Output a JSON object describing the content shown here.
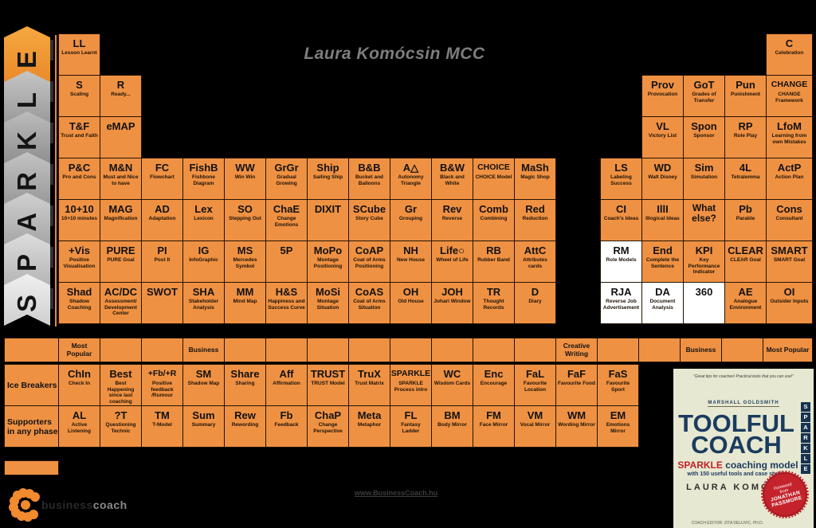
{
  "title": "Laura Komócsin MCC",
  "colors": {
    "cell_orange": "#EF9143",
    "white_cell": "#FFFFFF",
    "navy": "#1B3B5F",
    "red": "#C32026",
    "chevron_orange": "#F6A83F"
  },
  "sparkle_column": {
    "letters_top_to_bottom": [
      "E",
      "L",
      "K",
      "R",
      "A",
      "P",
      "S"
    ]
  },
  "main_table": {
    "rows": [
      {
        "row": 1,
        "cells": [
          {
            "col": 1,
            "sym": "LL",
            "cap": "Lesson Learnt"
          }
        ]
      },
      {
        "row": 2,
        "cells": [
          {
            "col": 1,
            "sym": "S",
            "cap": "Scaling"
          },
          {
            "col": 2,
            "sym": "R",
            "cap": "Ready..."
          }
        ]
      },
      {
        "row": 3,
        "cells": [
          {
            "col": 1,
            "sym": "T&F",
            "cap": "Trust and Faith"
          },
          {
            "col": 2,
            "sym": "eMAP",
            "cap": ""
          }
        ]
      },
      {
        "row": 4,
        "cells": [
          {
            "col": 1,
            "sym": "P&C",
            "cap": "Pro and Cons"
          },
          {
            "col": 2,
            "sym": "M&N",
            "cap": "Must and Nice to have"
          },
          {
            "col": 3,
            "sym": "FC",
            "cap": "Flowchart"
          },
          {
            "col": 4,
            "sym": "FishB",
            "cap": "Fishbone Diagram"
          },
          {
            "col": 5,
            "sym": "WW",
            "cap": "Win Win"
          },
          {
            "col": 6,
            "sym": "GrGr",
            "cap": "Gradual Growing"
          },
          {
            "col": 7,
            "sym": "Ship",
            "cap": "Sailing Ship"
          },
          {
            "col": 8,
            "sym": "B&B",
            "cap": "Bucket and Balloons"
          },
          {
            "col": 9,
            "sym": "A△",
            "cap": "Autonomy Triangle"
          },
          {
            "col": 10,
            "sym": "B&W",
            "cap": "Black and White"
          },
          {
            "col": 11,
            "sym": "CHOICE",
            "cap": "CHOICE Model"
          },
          {
            "col": 12,
            "sym": "MaSh",
            "cap": "Magic Shop"
          }
        ]
      },
      {
        "row": 5,
        "cells": [
          {
            "col": 1,
            "sym": "10+10",
            "cap": "10+10 minutes"
          },
          {
            "col": 2,
            "sym": "MAG",
            "cap": "Magnification"
          },
          {
            "col": 3,
            "sym": "AD",
            "cap": "Adaptation"
          },
          {
            "col": 4,
            "sym": "Lex",
            "cap": "Lexicon"
          },
          {
            "col": 5,
            "sym": "SO",
            "cap": "Stepping Out"
          },
          {
            "col": 6,
            "sym": "ChaE",
            "cap": "Change Emotions"
          },
          {
            "col": 7,
            "sym": "DIXIT",
            "cap": ""
          },
          {
            "col": 8,
            "sym": "SCube",
            "cap": "Story Cube"
          },
          {
            "col": 9,
            "sym": "Gr",
            "cap": "Grouping"
          },
          {
            "col": 10,
            "sym": "Rev",
            "cap": "Reverse"
          },
          {
            "col": 11,
            "sym": "Comb",
            "cap": "Combining"
          },
          {
            "col": 12,
            "sym": "Red",
            "cap": "Reduction"
          }
        ]
      },
      {
        "row": 6,
        "cells": [
          {
            "col": 1,
            "sym": "+Vis",
            "cap": "Positive Visualisation"
          },
          {
            "col": 2,
            "sym": "PURE",
            "cap": "PURE Goal"
          },
          {
            "col": 3,
            "sym": "PI",
            "cap": "Post It"
          },
          {
            "col": 4,
            "sym": "IG",
            "cap": "InfoGraphic"
          },
          {
            "col": 5,
            "sym": "MS",
            "cap": "Mercedes Symbol"
          },
          {
            "col": 6,
            "sym": "5P",
            "cap": ""
          },
          {
            "col": 7,
            "sym": "MoPo",
            "cap": "Montage Positioning"
          },
          {
            "col": 8,
            "sym": "CoAP",
            "cap": "Coat of Arms Positioning"
          },
          {
            "col": 9,
            "sym": "NH",
            "cap": "New House"
          },
          {
            "col": 10,
            "sym": "Life○",
            "cap": "Wheel of Life"
          },
          {
            "col": 11,
            "sym": "RB",
            "cap": "Rubber Band"
          },
          {
            "col": 12,
            "sym": "AttC",
            "cap": "Attributes cards"
          }
        ]
      },
      {
        "row": 7,
        "cells": [
          {
            "col": 1,
            "sym": "Shad",
            "cap": "Shadow Coaching"
          },
          {
            "col": 2,
            "sym": "AC/DC",
            "cap": "Assessment/ Development Center"
          },
          {
            "col": 3,
            "sym": "SWOT",
            "cap": ""
          },
          {
            "col": 4,
            "sym": "SHA",
            "cap": "Stakeholder Analysis"
          },
          {
            "col": 5,
            "sym": "MM",
            "cap": "Mind Map"
          },
          {
            "col": 6,
            "sym": "H&S",
            "cap": "Happiness and Success Curve"
          },
          {
            "col": 7,
            "sym": "MoSi",
            "cap": "Montage Situation"
          },
          {
            "col": 8,
            "sym": "CoAS",
            "cap": "Coat of Arms Situation"
          },
          {
            "col": 9,
            "sym": "OH",
            "cap": "Old House"
          },
          {
            "col": 10,
            "sym": "JOH",
            "cap": "Johari Window"
          },
          {
            "col": 11,
            "sym": "TR",
            "cap": "Thought Records"
          },
          {
            "col": 12,
            "sym": "D",
            "cap": "Diary"
          }
        ]
      }
    ]
  },
  "right_table": {
    "rows": [
      {
        "row": 1,
        "cells": [
          {
            "col": 5,
            "sym": "C",
            "cap": "Celebration"
          }
        ]
      },
      {
        "row": 2,
        "cells": [
          {
            "col": 2,
            "sym": "Prov",
            "cap": "Provocation"
          },
          {
            "col": 3,
            "sym": "GoT",
            "cap": "Grades of Transfer"
          },
          {
            "col": 4,
            "sym": "Pun",
            "cap": "Punishment"
          },
          {
            "col": 5,
            "sym": "CHANGE",
            "cap": "CHANGE Framework"
          }
        ]
      },
      {
        "row": 3,
        "cells": [
          {
            "col": 2,
            "sym": "VL",
            "cap": "Victory List"
          },
          {
            "col": 3,
            "sym": "Spon",
            "cap": "Sponsor"
          },
          {
            "col": 4,
            "sym": "RP",
            "cap": "Role Play"
          },
          {
            "col": 5,
            "sym": "LfoM",
            "cap": "Learning from own Mistakes"
          }
        ]
      },
      {
        "row": 4,
        "cells": [
          {
            "col": 1,
            "sym": "LS",
            "cap": "Labeling Success"
          },
          {
            "col": 2,
            "sym": "WD",
            "cap": "Walt Disney"
          },
          {
            "col": 3,
            "sym": "Sim",
            "cap": "Simulation"
          },
          {
            "col": 4,
            "sym": "4L",
            "cap": "Tetralemma"
          },
          {
            "col": 5,
            "sym": "ActP",
            "cap": "Action Plan"
          }
        ]
      },
      {
        "row": 5,
        "cells": [
          {
            "col": 1,
            "sym": "CI",
            "cap": "Coach's Ideas"
          },
          {
            "col": 2,
            "sym": "IllI",
            "cap": "Illogical Ideas"
          },
          {
            "col": 3,
            "sym": "What else?",
            "cap": ""
          },
          {
            "col": 4,
            "sym": "Pb",
            "cap": "Parable"
          },
          {
            "col": 5,
            "sym": "Cons",
            "cap": "Consultant"
          }
        ]
      },
      {
        "row": 6,
        "cells": [
          {
            "col": 1,
            "sym": "RM",
            "cap": "Role Models",
            "white": true
          },
          {
            "col": 2,
            "sym": "End",
            "cap": "Complete the Sentence"
          },
          {
            "col": 3,
            "sym": "KPI",
            "cap": "Key Performance Indicator"
          },
          {
            "col": 4,
            "sym": "CLEAR",
            "cap": "CLEAR Goal"
          },
          {
            "col": 5,
            "sym": "SMART",
            "cap": "SMART Goal"
          }
        ]
      },
      {
        "row": 7,
        "cells": [
          {
            "col": 1,
            "sym": "RJA",
            "cap": "Reverse Job Advertisement",
            "white": true
          },
          {
            "col": 2,
            "sym": "DA",
            "cap": "Document Analysis",
            "white": true
          },
          {
            "col": 3,
            "sym": "360",
            "cap": "",
            "white": true
          },
          {
            "col": 4,
            "sym": "AE",
            "cap": "Analogue Environment"
          },
          {
            "col": 5,
            "sym": "OI",
            "cap": "Outsider Inputs"
          }
        ]
      }
    ]
  },
  "phase_header": {
    "labels": [
      "Most Popular",
      "",
      "",
      "Business",
      "",
      "",
      "",
      "",
      "",
      "",
      "",
      "",
      "Creative Writing",
      "",
      "",
      "Business",
      "",
      "Most Popular"
    ]
  },
  "bottom_table": {
    "row_labels": [
      "Ice Breakers",
      "Supporters in any phase"
    ],
    "rows": [
      {
        "cells": [
          {
            "sym": "ChIn",
            "cap": "Check In"
          },
          {
            "sym": "Best",
            "cap": "Best Happening since last coaching"
          },
          {
            "sym": "+Fb/+R",
            "cap": "Positive feedback /Rumour"
          },
          {
            "sym": "SM",
            "cap": "Shadow Map"
          },
          {
            "sym": "Share",
            "cap": "Sharing"
          },
          {
            "sym": "Aff",
            "cap": "Affirmation"
          },
          {
            "sym": "TRUST",
            "cap": "TRUST Model"
          },
          {
            "sym": "TruX",
            "cap": "Trust Matrix"
          },
          {
            "sym": "SPARKLE",
            "cap": "SPARKLE Process intro"
          },
          {
            "sym": "WC",
            "cap": "Wisdom Cards"
          },
          {
            "sym": "Enc",
            "cap": "Encourage"
          },
          {
            "sym": "FaL",
            "cap": "Favourite Location"
          },
          {
            "sym": "FaF",
            "cap": "Favourite Food"
          },
          {
            "sym": "FaS",
            "cap": "Favourite Sport"
          }
        ]
      },
      {
        "cells": [
          {
            "sym": "AL",
            "cap": "Active Listening"
          },
          {
            "sym": "?T",
            "cap": "Questioning Technic"
          },
          {
            "sym": "TM",
            "cap": "T-Model"
          },
          {
            "sym": "Sum",
            "cap": "Summary"
          },
          {
            "sym": "Rew",
            "cap": "Rewording"
          },
          {
            "sym": "Fb",
            "cap": "Feedback"
          },
          {
            "sym": "ChaP",
            "cap": "Change Perspective"
          },
          {
            "sym": "Meta",
            "cap": "Metaphor"
          },
          {
            "sym": "FL",
            "cap": "Fantasy Ladder"
          },
          {
            "sym": "BM",
            "cap": "Body Mirror"
          },
          {
            "sym": "FM",
            "cap": "Face Mirror"
          },
          {
            "sym": "VM",
            "cap": "Vocal Mirror"
          },
          {
            "sym": "WM",
            "cap": "Wording Mirror"
          },
          {
            "sym": "EM",
            "cap": "Emotions Mirror"
          }
        ]
      }
    ]
  },
  "book_cover": {
    "quote": "\"Great tips for coaches! Practical tools that you can use!\"",
    "quote_author": "MARSHALL GOLDSMITH",
    "title_line1": "TOOLFUL",
    "title_line2": "COACH",
    "series_red": "SPARKLE",
    "series_rest": "coaching model",
    "tagline": "with 150 useful tools and case studies",
    "author": "LAURA KOMÓCSIN",
    "badge": {
      "line1": "Foreword",
      "line2": "from",
      "line3": "JONATHAN",
      "line4": "PASSMORE"
    },
    "spine_letters": [
      "S",
      "P",
      "A",
      "R",
      "K",
      "L",
      "E"
    ],
    "footer_note": "COACH EDITOR: ZITA DELUVIC, PH.D."
  },
  "footer": {
    "logo_business": "business",
    "logo_coach": "coach",
    "link": "www.BusinessCoach.hu"
  }
}
